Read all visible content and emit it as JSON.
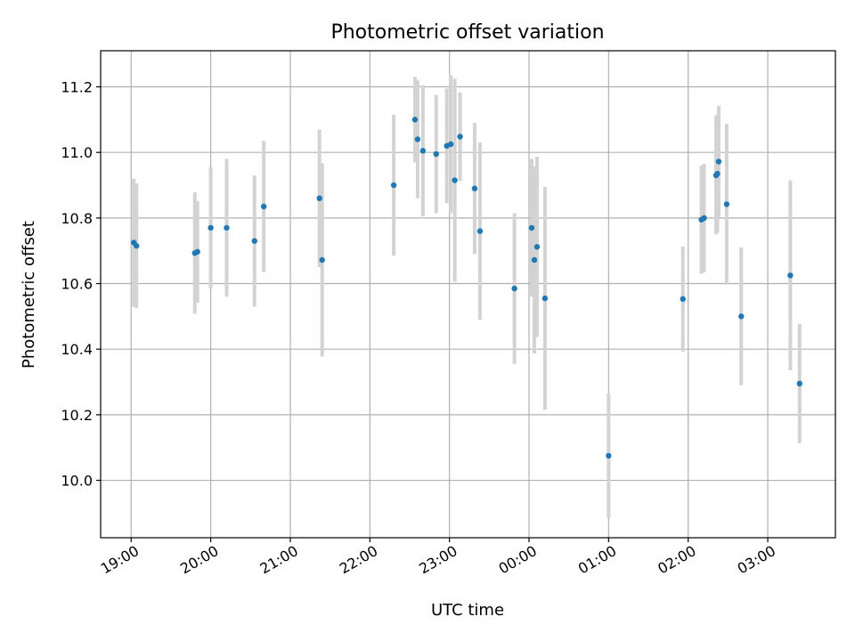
{
  "chart_data": {
    "type": "scatter",
    "title": "Photometric offset variation",
    "xlabel": "UTC time",
    "ylabel": "Photometric offset",
    "x_unit": "UTC date-time",
    "xlim": [
      "2000-01-01T18:37:00",
      "2000-01-02T03:51:00"
    ],
    "ylim": [
      9.825,
      11.31
    ],
    "x_ticks": [
      {
        "t": "2000-01-01T19:00:00",
        "label": "19:00"
      },
      {
        "t": "2000-01-01T20:00:00",
        "label": "20:00"
      },
      {
        "t": "2000-01-01T21:00:00",
        "label": "21:00"
      },
      {
        "t": "2000-01-01T22:00:00",
        "label": "22:00"
      },
      {
        "t": "2000-01-01T23:00:00",
        "label": "23:00"
      },
      {
        "t": "2000-01-02T00:00:00",
        "label": "00:00"
      },
      {
        "t": "2000-01-02T01:00:00",
        "label": "01:00"
      },
      {
        "t": "2000-01-02T02:00:00",
        "label": "02:00"
      },
      {
        "t": "2000-01-02T03:00:00",
        "label": "03:00"
      }
    ],
    "y_ticks": [
      {
        "v": 10.0,
        "label": "10.0"
      },
      {
        "v": 10.2,
        "label": "10.2"
      },
      {
        "v": 10.4,
        "label": "10.4"
      },
      {
        "v": 10.6,
        "label": "10.6"
      },
      {
        "v": 10.8,
        "label": "10.8"
      },
      {
        "v": 11.0,
        "label": "11.0"
      },
      {
        "v": 11.2,
        "label": "11.2"
      }
    ],
    "grid": true,
    "point_color": "#1f77b4",
    "errorbar_color": "#d3d3d3",
    "points": [
      {
        "t": "2000-01-01T19:02:00",
        "y": 10.725,
        "err": 0.195
      },
      {
        "t": "2000-01-01T19:04:00",
        "y": 10.715,
        "err": 0.19
      },
      {
        "t": "2000-01-01T19:48:00",
        "y": 10.693,
        "err": 0.185
      },
      {
        "t": "2000-01-01T19:50:00",
        "y": 10.697,
        "err": 0.155
      },
      {
        "t": "2000-01-01T20:00:00",
        "y": 10.77,
        "err": 0.185
      },
      {
        "t": "2000-01-01T20:12:00",
        "y": 10.77,
        "err": 0.21
      },
      {
        "t": "2000-01-01T20:33:00",
        "y": 10.73,
        "err": 0.2
      },
      {
        "t": "2000-01-01T20:40:00",
        "y": 10.835,
        "err": 0.2
      },
      {
        "t": "2000-01-01T21:22:00",
        "y": 10.86,
        "err": 0.21
      },
      {
        "t": "2000-01-01T21:24:00",
        "y": 10.672,
        "err": 0.295
      },
      {
        "t": "2000-01-01T22:18:00",
        "y": 10.9,
        "err": 0.215
      },
      {
        "t": "2000-01-01T22:34:00",
        "y": 11.1,
        "err": 0.13
      },
      {
        "t": "2000-01-01T22:36:00",
        "y": 11.04,
        "err": 0.18
      },
      {
        "t": "2000-01-01T22:40:00",
        "y": 11.005,
        "err": 0.2
      },
      {
        "t": "2000-01-01T22:50:00",
        "y": 10.995,
        "err": 0.18
      },
      {
        "t": "2000-01-01T22:58:00",
        "y": 11.02,
        "err": 0.175
      },
      {
        "t": "2000-01-01T23:01:00",
        "y": 11.025,
        "err": 0.21
      },
      {
        "t": "2000-01-01T23:04:00",
        "y": 10.915,
        "err": 0.31
      },
      {
        "t": "2000-01-01T23:08:00",
        "y": 11.048,
        "err": 0.135
      },
      {
        "t": "2000-01-01T23:19:00",
        "y": 10.89,
        "err": 0.2
      },
      {
        "t": "2000-01-01T23:23:00",
        "y": 10.76,
        "err": 0.27
      },
      {
        "t": "2000-01-01T23:49:00",
        "y": 10.585,
        "err": 0.23
      },
      {
        "t": "2000-01-02T00:02:00",
        "y": 10.77,
        "err": 0.21
      },
      {
        "t": "2000-01-02T00:04:00",
        "y": 10.672,
        "err": 0.285
      },
      {
        "t": "2000-01-02T00:06:00",
        "y": 10.712,
        "err": 0.275
      },
      {
        "t": "2000-01-02T00:12:00",
        "y": 10.555,
        "err": 0.34
      },
      {
        "t": "2000-01-02T01:00:00",
        "y": 10.075,
        "err": 0.19
      },
      {
        "t": "2000-01-02T01:56:00",
        "y": 10.553,
        "err": 0.16
      },
      {
        "t": "2000-01-02T02:10:00",
        "y": 10.795,
        "err": 0.165
      },
      {
        "t": "2000-01-02T02:12:00",
        "y": 10.8,
        "err": 0.165
      },
      {
        "t": "2000-01-02T02:21:00",
        "y": 10.93,
        "err": 0.18
      },
      {
        "t": "2000-01-02T02:22:00",
        "y": 10.935,
        "err": 0.18
      },
      {
        "t": "2000-01-02T02:23:00",
        "y": 10.972,
        "err": 0.17
      },
      {
        "t": "2000-01-02T02:29:00",
        "y": 10.842,
        "err": 0.245
      },
      {
        "t": "2000-01-02T02:40:00",
        "y": 10.5,
        "err": 0.21
      },
      {
        "t": "2000-01-02T03:17:00",
        "y": 10.625,
        "err": 0.29
      },
      {
        "t": "2000-01-02T03:24:00",
        "y": 10.295,
        "err": 0.182
      }
    ]
  }
}
